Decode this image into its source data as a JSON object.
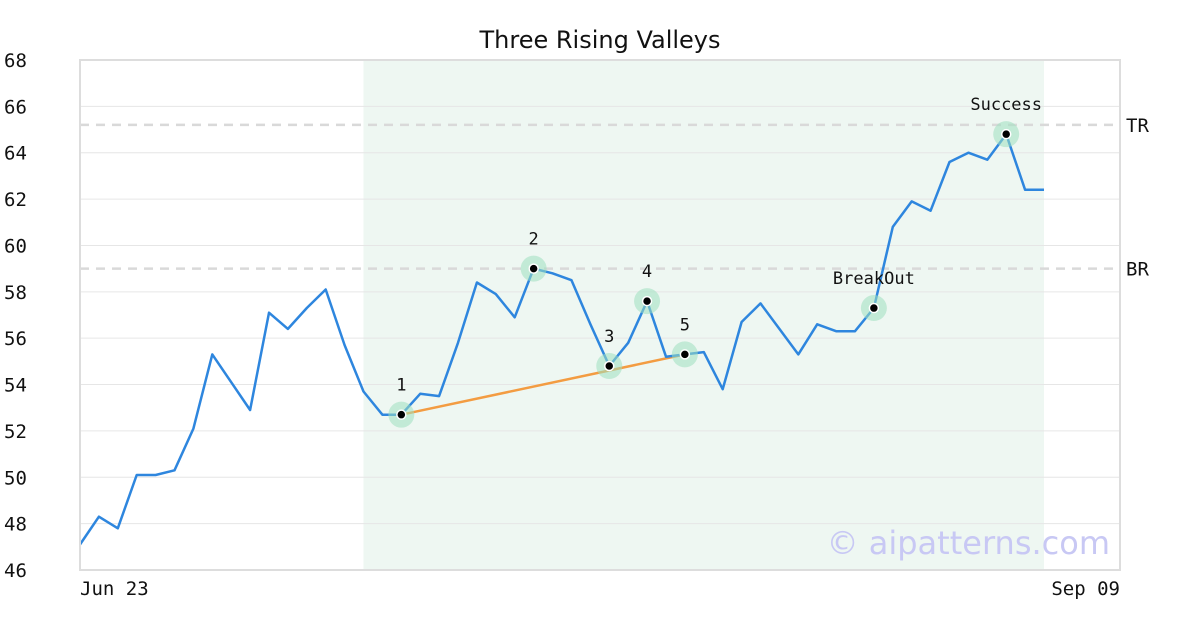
{
  "chart_data": {
    "type": "line",
    "title": "Three Rising Valleys",
    "xlabel": "",
    "ylabel": "",
    "ylim": [
      46,
      68
    ],
    "yticks": [
      "46",
      "48",
      "50",
      "52",
      "54",
      "56",
      "58",
      "60",
      "62",
      "64",
      "66",
      "68"
    ],
    "x_tick_labels": [
      "Jun 23",
      "Sep 09"
    ],
    "grid": "horizontal",
    "series": [
      {
        "values": [
          47.1,
          48.3,
          47.8,
          50.1,
          50.1,
          50.3,
          52.1,
          55.3,
          54.1,
          52.9,
          57.1,
          56.4,
          57.3,
          58.1,
          55.7,
          53.7,
          52.7,
          52.7,
          53.6,
          53.5,
          55.8,
          58.4,
          57.9,
          56.9,
          59.0,
          58.8,
          58.5,
          56.6,
          54.8,
          55.8,
          57.6,
          55.2,
          55.3,
          55.4,
          53.8,
          56.7,
          57.5,
          56.4,
          55.3,
          56.6,
          56.3,
          56.3,
          57.3,
          60.8,
          61.9,
          61.5,
          63.6,
          64.0,
          63.7,
          64.8,
          62.4,
          62.4
        ],
        "color": "#2e86de"
      }
    ],
    "highlight_range": {
      "start_index": 15,
      "end_index": 51,
      "color": "#eef7f2"
    },
    "reference_lines": [
      {
        "label": "TR",
        "value": 65.2
      },
      {
        "label": "BR",
        "value": 59.0
      }
    ],
    "pattern_points": [
      {
        "label": "1",
        "index": 17,
        "value": 52.7
      },
      {
        "label": "2",
        "index": 24,
        "value": 59.0
      },
      {
        "label": "3",
        "index": 28,
        "value": 54.8
      },
      {
        "label": "4",
        "index": 30,
        "value": 57.6
      },
      {
        "label": "5",
        "index": 32,
        "value": 55.3
      },
      {
        "label": "BreakOut",
        "index": 42,
        "value": 57.3
      },
      {
        "label": "Success",
        "index": 49,
        "value": 64.8
      }
    ],
    "trendline": {
      "from_index": 17,
      "from_value": 52.7,
      "to_index": 32,
      "to_value": 55.3,
      "color": "#f39c42"
    },
    "watermark": "© aipatterns.com"
  }
}
